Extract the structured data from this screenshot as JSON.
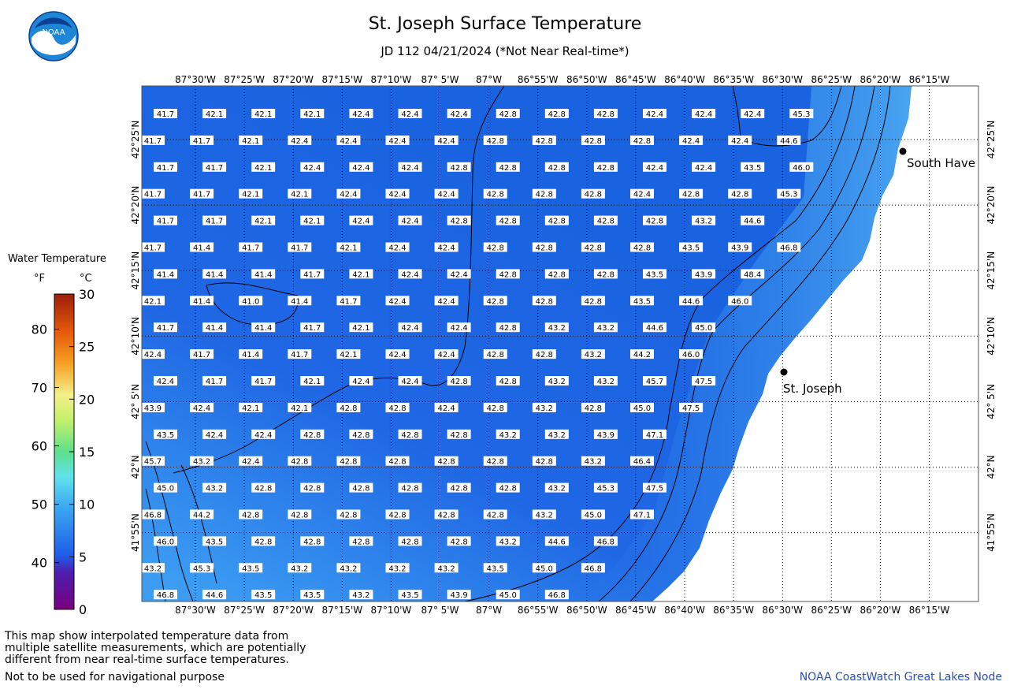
{
  "header": {
    "title": "St. Joseph Surface Temperature",
    "subtitle": "JD 112 04/21/2024 (*Not Near Real-time*)",
    "logo_text": "NOAA",
    "logo_icon": "noaa-logo-icon"
  },
  "legend": {
    "title": "Water Temperature",
    "unit_f": "°F",
    "unit_c": "°C",
    "f_ticks": [
      40,
      50,
      60,
      70,
      80
    ],
    "c_ticks": [
      0,
      5,
      10,
      15,
      20,
      25,
      30
    ],
    "f_labels": [
      "40",
      "50",
      "60",
      "70",
      "80"
    ],
    "c_labels": [
      "0",
      "5",
      "10",
      "15",
      "20",
      "25",
      "30"
    ]
  },
  "map": {
    "lon_labels": [
      "87°30'W",
      "87°25'W",
      "87°20'W",
      "87°15'W",
      "87°10'W",
      "87° 5'W",
      "87°W",
      "86°55'W",
      "86°50'W",
      "86°45'W",
      "86°40'W",
      "86°35'W",
      "86°30'W",
      "86°25'W",
      "86°20'W",
      "86°15'W"
    ],
    "lat_labels": [
      "42°25'N",
      "42°20'N",
      "42°15'N",
      "42°10'N",
      "42° 5'N",
      "42°N",
      "41°55'N"
    ],
    "cities": [
      {
        "name": "South Haven",
        "label": "South Have"
      },
      {
        "name": "St. Joseph",
        "label": "St. Joseph"
      }
    ],
    "grid_rows": [
      {
        "offset": false,
        "values": [
          "41.7",
          "42.1",
          "42.1",
          "42.1",
          "42.4",
          "42.4",
          "42.4",
          "42.8",
          "42.8",
          "42.8",
          "42.4",
          "42.4",
          "42.4",
          "45.3"
        ]
      },
      {
        "offset": true,
        "values": [
          "41.7",
          "41.7",
          "42.1",
          "42.4",
          "42.4",
          "42.4",
          "42.4",
          "42.8",
          "42.8",
          "42.8",
          "42.8",
          "42.4",
          "42.4",
          "44.6"
        ]
      },
      {
        "offset": false,
        "values": [
          "41.7",
          "41.7",
          "42.1",
          "42.4",
          "42.4",
          "42.4",
          "42.8",
          "42.8",
          "42.8",
          "42.8",
          "42.4",
          "42.4",
          "43.5",
          "46.0"
        ]
      },
      {
        "offset": true,
        "values": [
          "41.7",
          "41.7",
          "42.1",
          "42.1",
          "42.4",
          "42.4",
          "42.4",
          "42.8",
          "42.8",
          "42.8",
          "42.4",
          "42.8",
          "42.8",
          "45.3"
        ]
      },
      {
        "offset": false,
        "values": [
          "41.7",
          "41.7",
          "42.1",
          "42.1",
          "42.4",
          "42.4",
          "42.8",
          "42.8",
          "42.8",
          "42.8",
          "42.8",
          "43.2",
          "44.6"
        ]
      },
      {
        "offset": true,
        "values": [
          "41.7",
          "41.4",
          "41.7",
          "41.7",
          "42.1",
          "42.4",
          "42.4",
          "42.8",
          "42.8",
          "42.8",
          "42.8",
          "43.5",
          "43.9",
          "46.8"
        ]
      },
      {
        "offset": false,
        "values": [
          "41.4",
          "41.4",
          "41.4",
          "41.7",
          "42.1",
          "42.4",
          "42.4",
          "42.8",
          "42.8",
          "42.8",
          "43.5",
          "43.9",
          "48.4"
        ]
      },
      {
        "offset": true,
        "values": [
          "42.1",
          "41.4",
          "41.0",
          "41.4",
          "41.7",
          "42.4",
          "42.4",
          "42.8",
          "42.8",
          "42.8",
          "43.5",
          "44.6",
          "46.0"
        ]
      },
      {
        "offset": false,
        "values": [
          "41.7",
          "41.4",
          "41.4",
          "41.7",
          "42.1",
          "42.4",
          "42.4",
          "42.8",
          "43.2",
          "43.2",
          "44.6",
          "45.0"
        ]
      },
      {
        "offset": true,
        "values": [
          "42.4",
          "41.7",
          "41.4",
          "41.7",
          "42.1",
          "42.4",
          "42.4",
          "42.8",
          "42.8",
          "43.2",
          "44.2",
          "46.0"
        ]
      },
      {
        "offset": false,
        "values": [
          "42.4",
          "41.7",
          "41.7",
          "42.1",
          "42.4",
          "42.4",
          "42.8",
          "42.8",
          "43.2",
          "43.2",
          "45.7",
          "47.5"
        ]
      },
      {
        "offset": true,
        "values": [
          "43.9",
          "42.4",
          "42.1",
          "42.1",
          "42.8",
          "42.8",
          "42.4",
          "42.8",
          "43.2",
          "42.8",
          "45.0",
          "47.5"
        ]
      },
      {
        "offset": false,
        "values": [
          "43.5",
          "42.4",
          "42.4",
          "42.8",
          "42.8",
          "42.8",
          "42.8",
          "43.2",
          "43.2",
          "43.9",
          "47.1"
        ]
      },
      {
        "offset": true,
        "values": [
          "45.7",
          "43.2",
          "42.4",
          "42.8",
          "42.8",
          "42.8",
          "42.8",
          "42.8",
          "42.8",
          "43.2",
          "46.4"
        ]
      },
      {
        "offset": false,
        "values": [
          "45.0",
          "43.2",
          "42.8",
          "42.8",
          "42.8",
          "42.8",
          "42.8",
          "42.8",
          "43.2",
          "45.3",
          "47.5"
        ]
      },
      {
        "offset": true,
        "values": [
          "46.8",
          "44.2",
          "42.8",
          "42.8",
          "42.8",
          "42.8",
          "42.8",
          "42.8",
          "43.2",
          "45.0",
          "47.1"
        ]
      },
      {
        "offset": false,
        "values": [
          "46.0",
          "43.5",
          "42.8",
          "42.8",
          "42.8",
          "42.8",
          "42.8",
          "43.2",
          "44.6",
          "46.8"
        ]
      },
      {
        "offset": true,
        "values": [
          "43.2",
          "45.3",
          "43.5",
          "43.2",
          "43.2",
          "43.2",
          "43.2",
          "43.5",
          "45.0",
          "46.8"
        ]
      },
      {
        "offset": false,
        "values": [
          "46.8",
          "44.6",
          "43.5",
          "43.5",
          "43.2",
          "43.5",
          "43.9",
          "45.0",
          "46.8"
        ]
      }
    ]
  },
  "footer": {
    "note": "This map show interpolated temperature data from\nmultiple satellite measurements, which are potentially\ndifferent from near real-time surface temperatures.",
    "nav_note": "Not to be used for navigational purpose",
    "credit": "NOAA CoastWatch Great Lakes Node"
  }
}
